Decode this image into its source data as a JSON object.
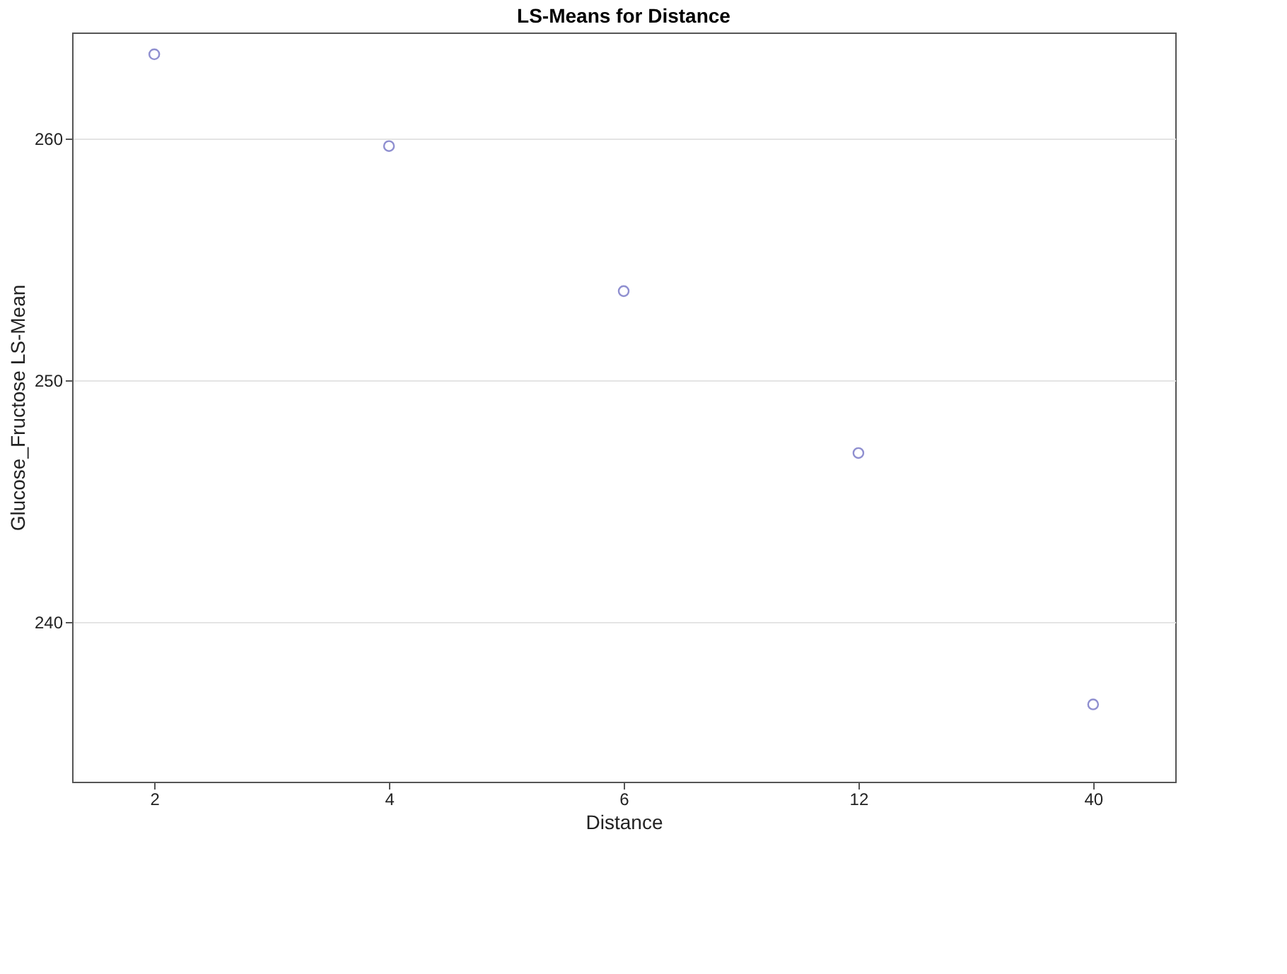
{
  "chart_data": {
    "type": "scatter",
    "title": "LS-Means for Distance",
    "xlabel": "Distance",
    "ylabel": "Glucose_Fructose LS-Mean",
    "categories": [
      "2",
      "4",
      "6",
      "12",
      "40"
    ],
    "series": [
      {
        "color": "#8f8fd0",
        "values": [
          263.5,
          259.7,
          253.7,
          247.0,
          236.6
        ]
      }
    ],
    "ylim": [
      233.4,
      264.4
    ],
    "yticks": [
      240,
      250,
      260
    ],
    "grid": "y",
    "marker": "circle",
    "legend": false
  }
}
